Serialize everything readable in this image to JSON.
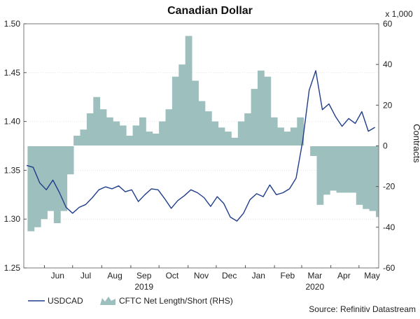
{
  "chart_data": {
    "type": "line+area",
    "title": "Canadian Dollar",
    "x_ticks": [
      "Jun",
      "Jul",
      "Aug",
      "Sep",
      "Oct",
      "Nov",
      "Dec",
      "Jan",
      "Feb",
      "Mar",
      "Apr",
      "May"
    ],
    "x_years": [
      "2019",
      "2020"
    ],
    "left_axis": {
      "ylim": [
        1.25,
        1.5
      ],
      "ticks": [
        "1.25",
        "1.30",
        "1.35",
        "1.40",
        "1.45",
        "1.50"
      ]
    },
    "right_axis": {
      "ylim": [
        -60,
        60
      ],
      "ticks": [
        "-60",
        "-40",
        "-20",
        "0",
        "20",
        "40",
        "60"
      ],
      "label": "Contracts",
      "unit_label": "x 1,000"
    },
    "series": [
      {
        "name": "USDCAD",
        "axis": "left",
        "color": "#1f3d8a",
        "x": [
          "2019-05-13",
          "2019-05-20",
          "2019-05-27",
          "2019-06-03",
          "2019-06-10",
          "2019-06-17",
          "2019-06-24",
          "2019-07-01",
          "2019-07-08",
          "2019-07-15",
          "2019-07-22",
          "2019-07-29",
          "2019-08-05",
          "2019-08-12",
          "2019-08-19",
          "2019-08-26",
          "2019-09-02",
          "2019-09-09",
          "2019-09-16",
          "2019-09-23",
          "2019-09-30",
          "2019-10-07",
          "2019-10-14",
          "2019-10-21",
          "2019-10-28",
          "2019-11-04",
          "2019-11-11",
          "2019-11-18",
          "2019-11-25",
          "2019-12-02",
          "2019-12-09",
          "2019-12-16",
          "2019-12-23",
          "2019-12-30",
          "2020-01-06",
          "2020-01-13",
          "2020-01-20",
          "2020-01-27",
          "2020-02-03",
          "2020-02-10",
          "2020-02-17",
          "2020-02-24",
          "2020-03-02",
          "2020-03-09",
          "2020-03-16",
          "2020-03-23",
          "2020-03-30",
          "2020-04-06",
          "2020-04-13",
          "2020-04-20",
          "2020-04-27",
          "2020-05-04",
          "2020-05-11",
          "2020-05-18"
        ],
        "values": [
          1.355,
          1.353,
          1.337,
          1.33,
          1.34,
          1.327,
          1.312,
          1.306,
          1.312,
          1.315,
          1.322,
          1.33,
          1.333,
          1.331,
          1.334,
          1.328,
          1.33,
          1.318,
          1.325,
          1.331,
          1.33,
          1.321,
          1.311,
          1.319,
          1.324,
          1.33,
          1.327,
          1.322,
          1.313,
          1.323,
          1.316,
          1.302,
          1.298,
          1.306,
          1.32,
          1.326,
          1.323,
          1.335,
          1.325,
          1.327,
          1.331,
          1.342,
          1.38,
          1.432,
          1.452,
          1.412,
          1.418,
          1.405,
          1.395,
          1.403,
          1.398,
          1.41,
          1.39,
          1.394
        ]
      },
      {
        "name": "CFTC Net Length/Short (RHS)",
        "axis": "right",
        "color": "#9dbfbd",
        "x": [
          "2019-05-14",
          "2019-05-21",
          "2019-05-28",
          "2019-06-04",
          "2019-06-11",
          "2019-06-18",
          "2019-06-25",
          "2019-07-02",
          "2019-07-09",
          "2019-07-16",
          "2019-07-23",
          "2019-07-30",
          "2019-08-06",
          "2019-08-13",
          "2019-08-20",
          "2019-08-27",
          "2019-09-03",
          "2019-09-10",
          "2019-09-17",
          "2019-09-24",
          "2019-10-01",
          "2019-10-08",
          "2019-10-15",
          "2019-10-22",
          "2019-10-29",
          "2019-11-05",
          "2019-11-12",
          "2019-11-19",
          "2019-11-26",
          "2019-12-03",
          "2019-12-10",
          "2019-12-17",
          "2019-12-24",
          "2019-12-31",
          "2020-01-07",
          "2020-01-14",
          "2020-01-21",
          "2020-01-28",
          "2020-02-04",
          "2020-02-11",
          "2020-02-18",
          "2020-02-25",
          "2020-03-03",
          "2020-03-10",
          "2020-03-17",
          "2020-03-24",
          "2020-03-31",
          "2020-04-07",
          "2020-04-14",
          "2020-04-21",
          "2020-04-28",
          "2020-05-05",
          "2020-05-12",
          "2020-05-19"
        ],
        "values": [
          -42,
          -40,
          -36,
          -32,
          -38,
          -32,
          -14,
          5,
          8,
          16,
          24,
          18,
          14,
          12,
          10,
          5,
          10,
          14,
          7,
          6,
          12,
          18,
          34,
          40,
          54,
          32,
          22,
          17,
          12,
          9,
          7,
          4,
          12,
          16,
          28,
          37,
          34,
          14,
          9,
          7,
          9,
          14,
          0,
          -5,
          -29,
          -24,
          -22,
          -23,
          -23,
          -23,
          -29,
          -31,
          -32,
          -35
        ]
      }
    ],
    "source": "Source: Refinitiv Datastream"
  }
}
